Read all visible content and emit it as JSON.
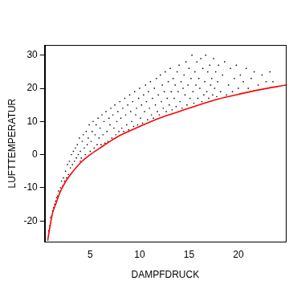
{
  "chart_data": {
    "type": "scatter",
    "x_label": "DAMPFDRUCK",
    "y_label": "LUFTTEMPERATUR",
    "xlim": [
      0.4,
      24.8
    ],
    "xticks": [
      5,
      10,
      15,
      20
    ],
    "ylim": [
      -26.3,
      33.1
    ],
    "yticks": [
      -20,
      -10,
      0,
      10,
      20,
      30
    ],
    "grid": false,
    "series": [
      {
        "type": "scatter",
        "color": "#000000",
        "marker": "point",
        "x": [
          0.8,
          0.9,
          1.0,
          1.1,
          1.2,
          1.3,
          1.4,
          1.5,
          1.6,
          1.7,
          1.8,
          1.9,
          2.0,
          2.1,
          2.2,
          2.3,
          2.4,
          2.5,
          2.6,
          2.7,
          2.8,
          2.9,
          3.0,
          3.1,
          3.2,
          3.3,
          3.4,
          3.5,
          3.6,
          3.7,
          3.8,
          3.9,
          4.0,
          4.1,
          4.2,
          4.3,
          4.4,
          4.5,
          4.6,
          4.7,
          4.8,
          4.9,
          5.0,
          5.1,
          5.2,
          5.3,
          5.4,
          5.5,
          5.6,
          5.7,
          5.8,
          5.9,
          6.0,
          6.1,
          6.2,
          6.3,
          6.4,
          6.5,
          6.6,
          6.7,
          6.8,
          6.9,
          7.0,
          7.1,
          7.2,
          7.3,
          7.4,
          7.5,
          7.6,
          7.7,
          7.8,
          7.9,
          8.0,
          8.1,
          8.2,
          8.3,
          8.4,
          8.5,
          8.6,
          8.7,
          8.8,
          8.9,
          9.0,
          9.1,
          9.2,
          9.3,
          9.4,
          9.5,
          9.6,
          9.7,
          9.8,
          9.9,
          10.0,
          10.1,
          10.2,
          10.3,
          10.4,
          10.5,
          10.6,
          10.7,
          10.8,
          10.9,
          11.0,
          11.1,
          11.2,
          11.3,
          11.4,
          11.5,
          11.6,
          11.7,
          11.8,
          11.9,
          12.0,
          12.1,
          12.2,
          12.3,
          12.4,
          12.5,
          12.6,
          12.7,
          12.8,
          12.9,
          13.0,
          13.1,
          13.2,
          13.3,
          13.4,
          13.5,
          13.6,
          13.7,
          13.8,
          13.9,
          14.0,
          14.1,
          14.2,
          14.3,
          14.4,
          14.5,
          14.6,
          14.7,
          14.8,
          14.9,
          15.0,
          15.1,
          15.2,
          15.3,
          15.4,
          15.5,
          15.6,
          15.7,
          15.8,
          15.9,
          16.0,
          16.1,
          16.2,
          16.3,
          16.4,
          16.5,
          16.6,
          16.7,
          16.8,
          16.9,
          17.0,
          17.1,
          17.2,
          17.3,
          17.4,
          17.5,
          17.6,
          17.7,
          17.8,
          17.9,
          18.0,
          18.2,
          18.4,
          18.6,
          18.8,
          19.0,
          19.2,
          19.4,
          19.6,
          19.8,
          20.0,
          20.2,
          20.5,
          20.8,
          21.0,
          21.3,
          21.6,
          22.0,
          22.4,
          22.8,
          23.2,
          23.5,
          2.0,
          3.0,
          4.0
        ],
        "values": [
          -23,
          -21.5,
          -19,
          -18.5,
          -17,
          -16,
          -15,
          -14,
          -13,
          -12.5,
          -11,
          -11.5,
          -10,
          -8,
          -9.5,
          -7,
          -8,
          -5,
          -7,
          -3,
          -6,
          -2,
          -4,
          0,
          -3,
          1,
          -2,
          2,
          -1,
          3,
          0,
          5,
          1,
          -1,
          4,
          6,
          2,
          0,
          7,
          3,
          5,
          9,
          1,
          4,
          7,
          10,
          2,
          6,
          9,
          3,
          11,
          5,
          8,
          3,
          12,
          6,
          10,
          3.5,
          13,
          7,
          4,
          11,
          9,
          14,
          5,
          12,
          8,
          15,
          6,
          10,
          13,
          7,
          16,
          11,
          8,
          14,
          7,
          17,
          12,
          9,
          15,
          7.5,
          18,
          13,
          10,
          16,
          8.5,
          19,
          12,
          14,
          9,
          17,
          20,
          11,
          15,
          9.5,
          18,
          13,
          21,
          16,
          10.5,
          19,
          14,
          22,
          12,
          17,
          11,
          20,
          15,
          23,
          13,
          18,
          12,
          24,
          16,
          21,
          14,
          19,
          25,
          13,
          17,
          22,
          15,
          26,
          19,
          13.5,
          23,
          17,
          21,
          14.5,
          25,
          19,
          27,
          16,
          22,
          14,
          20,
          24,
          18,
          28,
          15,
          21,
          26,
          17,
          23,
          30,
          19,
          15.5,
          25,
          21,
          28,
          17,
          23,
          20,
          29,
          16,
          26,
          18,
          22,
          30,
          19,
          25,
          17,
          27,
          21,
          23,
          18,
          29,
          20,
          25,
          17.5,
          22,
          27,
          19,
          24,
          28,
          18,
          21,
          26,
          19,
          23,
          27,
          20,
          24,
          22,
          26,
          20,
          23,
          25,
          21,
          24,
          22,
          25,
          22,
          -11,
          -6,
          -2
        ]
      },
      {
        "type": "line",
        "color": "#ff0000",
        "line_style": "solid",
        "x": [
          0.7,
          0.8,
          1.0,
          1.2,
          1.5,
          2.0,
          2.5,
          3.0,
          4.0,
          5.0,
          6.0,
          7.0,
          8.0,
          10.0,
          12.0,
          14.0,
          16.0,
          18.0,
          20.0,
          22.0,
          24.8
        ],
        "values": [
          -26,
          -24,
          -20.5,
          -17.5,
          -15,
          -11,
          -8.2,
          -6,
          -2.5,
          0,
          2,
          4,
          5.8,
          8.5,
          11,
          13,
          15,
          16.8,
          18.2,
          19.5,
          21
        ]
      }
    ]
  }
}
